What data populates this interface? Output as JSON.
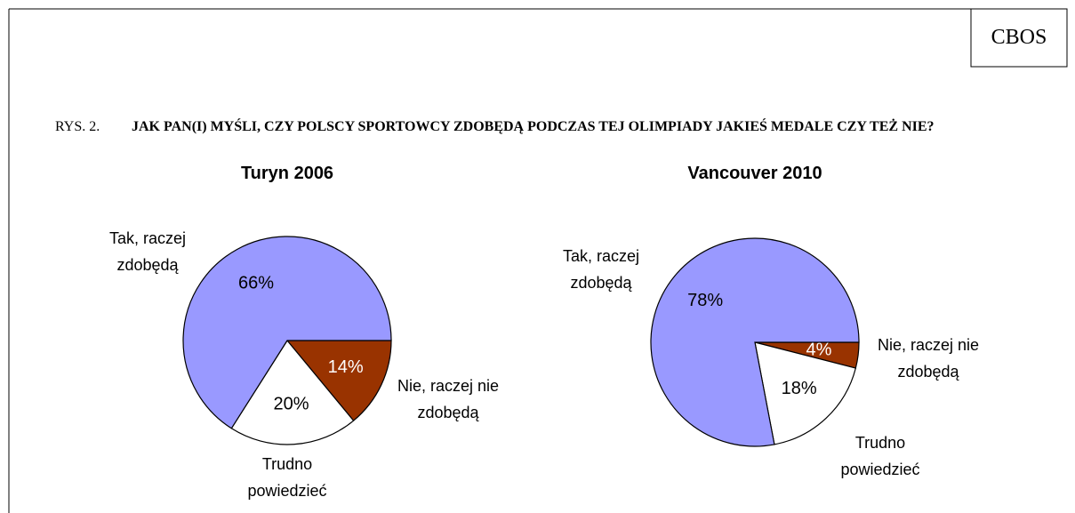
{
  "header": {
    "source": "CBOS",
    "figure": "RYS. 2.",
    "title": "JAK PAN(I) MYŚLI, CZY POLSCY SPORTOWCY ZDOBĘDĄ PODCZAS TEJ OLIMPIADY JAKIEŚ MEDALE CZY TEŻ NIE?"
  },
  "chart_data": [
    {
      "type": "pie",
      "title": "Turyn 2006",
      "categories": [
        "Nie, raczej nie zdobędą",
        "Trudno powiedzieć",
        "Tak, raczej zdobędą"
      ],
      "values": [
        14,
        20,
        66
      ],
      "value_labels": [
        "14%",
        "20%",
        "66%"
      ],
      "colors": [
        "#993300",
        "#ffffff",
        "#9999ff"
      ]
    },
    {
      "type": "pie",
      "title": "Vancouver 2010",
      "categories": [
        "Nie, raczej nie zdobędą",
        "Trudno powiedzieć",
        "Tak, raczej zdobędą"
      ],
      "values": [
        4,
        18,
        78
      ],
      "value_labels": [
        "4%",
        "18%",
        "78%"
      ],
      "colors": [
        "#993300",
        "#ffffff",
        "#9999ff"
      ]
    }
  ]
}
